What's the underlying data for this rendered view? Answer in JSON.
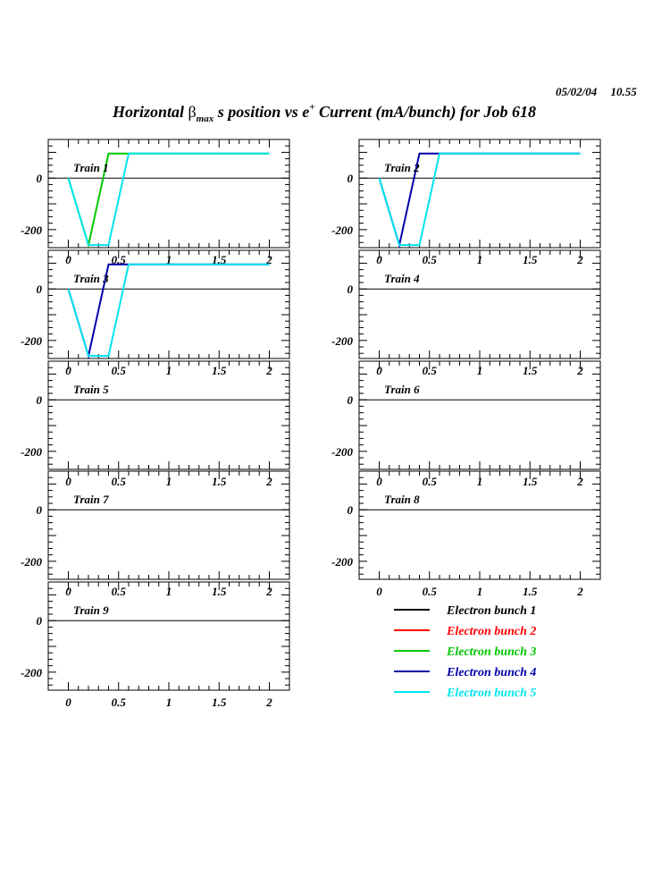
{
  "header": {
    "date": "05/02/04",
    "time": "10.55",
    "title_pre": "Horizontal ",
    "title_beta": "β",
    "title_sub": "max",
    "title_mid": " s position vs e",
    "title_sup": "+",
    "title_post": " Current (mA/bunch) for Job 618"
  },
  "chart_data": {
    "type": "line",
    "xlim": [
      -0.2,
      2.2
    ],
    "ylim": [
      -270,
      150
    ],
    "xticks": [
      0,
      0.5,
      1,
      1.5,
      2
    ],
    "xtick_labels": [
      "0",
      "0.5",
      "1",
      "1.5",
      "2"
    ],
    "yticks": [
      0,
      -200
    ],
    "ytick_labels": [
      "0",
      "-200"
    ],
    "reference_line_y": 0,
    "grid": false,
    "legend_position": "below-right",
    "series_meta": [
      {
        "name": "Electron bunch 1",
        "color": "#000000"
      },
      {
        "name": "Electron bunch 2",
        "color": "#ff0000"
      },
      {
        "name": "Electron bunch 3",
        "color": "#00c800"
      },
      {
        "name": "Electron bunch 4",
        "color": "#0000aa"
      },
      {
        "name": "Electron bunch 5",
        "color": "#00e5ee"
      }
    ],
    "panels": [
      {
        "label": "Train 1",
        "series": [
          {
            "bunch": 3,
            "x": [
              0,
              0.2,
              0.4,
              2
            ],
            "y": [
              0,
              -260,
              95,
              95
            ]
          },
          {
            "bunch": 5,
            "x": [
              0,
              0.2,
              0.4,
              0.6,
              2
            ],
            "y": [
              0,
              -260,
              -260,
              95,
              95
            ]
          }
        ]
      },
      {
        "label": "Train 2",
        "series": [
          {
            "bunch": 4,
            "x": [
              0,
              0.2,
              0.4,
              2
            ],
            "y": [
              0,
              -260,
              95,
              95
            ]
          },
          {
            "bunch": 5,
            "x": [
              0,
              0.2,
              0.4,
              0.6,
              2
            ],
            "y": [
              0,
              -260,
              -260,
              95,
              95
            ]
          }
        ]
      },
      {
        "label": "Train 3",
        "series": [
          {
            "bunch": 4,
            "x": [
              0,
              0.2,
              0.4,
              2
            ],
            "y": [
              0,
              -260,
              95,
              95
            ]
          },
          {
            "bunch": 5,
            "x": [
              0,
              0.2,
              0.4,
              0.6,
              2
            ],
            "y": [
              0,
              -260,
              -260,
              95,
              95
            ]
          }
        ]
      },
      {
        "label": "Train 4",
        "series": []
      },
      {
        "label": "Train 5",
        "series": []
      },
      {
        "label": "Train 6",
        "series": []
      },
      {
        "label": "Train 7",
        "series": []
      },
      {
        "label": "Train 8",
        "series": []
      },
      {
        "label": "Train 9",
        "series": []
      }
    ]
  }
}
